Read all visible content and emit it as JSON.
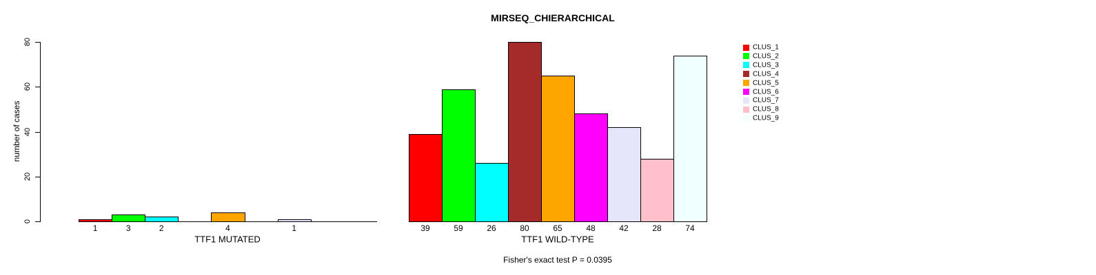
{
  "chart_data": {
    "type": "bar",
    "title": "MIRSEQ_CHIERARCHICAL",
    "ylabel": "number of cases",
    "ylim": [
      0,
      80
    ],
    "yticks": [
      0,
      20,
      40,
      60,
      80
    ],
    "grid": false,
    "legend_position": "right",
    "legend": [
      {
        "label": "CLUS_1",
        "color": "#FF0000"
      },
      {
        "label": "CLUS_2",
        "color": "#00FF00"
      },
      {
        "label": "CLUS_3",
        "color": "#00FFFF"
      },
      {
        "label": "CLUS_4",
        "color": "#A52A2A"
      },
      {
        "label": "CLUS_5",
        "color": "#FFA500"
      },
      {
        "label": "CLUS_6",
        "color": "#FF00FF"
      },
      {
        "label": "CLUS_7",
        "color": "#E6E6FA"
      },
      {
        "label": "CLUS_8",
        "color": "#FFC0CB"
      },
      {
        "label": "CLUS_9",
        "color": "#F0FFFF"
      }
    ],
    "panels": [
      {
        "xlabel": "TTF1 MUTATED",
        "categories": [
          "CLUS_1",
          "CLUS_2",
          "CLUS_3",
          "CLUS_4",
          "CLUS_5",
          "CLUS_6",
          "CLUS_7",
          "CLUS_8",
          "CLUS_9"
        ],
        "values": [
          1,
          3,
          2,
          0,
          4,
          0,
          1,
          0,
          0
        ],
        "bar_labels": [
          "1",
          "3",
          "2",
          "",
          "4",
          "",
          "1",
          "",
          ""
        ]
      },
      {
        "xlabel": "TTF1 WILD-TYPE",
        "categories": [
          "CLUS_1",
          "CLUS_2",
          "CLUS_3",
          "CLUS_4",
          "CLUS_5",
          "CLUS_6",
          "CLUS_7",
          "CLUS_8",
          "CLUS_9"
        ],
        "values": [
          39,
          59,
          26,
          80,
          65,
          48,
          42,
          28,
          74
        ],
        "bar_labels": [
          "39",
          "59",
          "26",
          "80",
          "65",
          "48",
          "42",
          "28",
          "74"
        ]
      }
    ],
    "annotation": "Fisher's exact test P = 0.0395"
  },
  "colors": {
    "background": "#FFFFFF",
    "axis": "#000000",
    "text": "#000000",
    "bar_border": "#000000"
  }
}
